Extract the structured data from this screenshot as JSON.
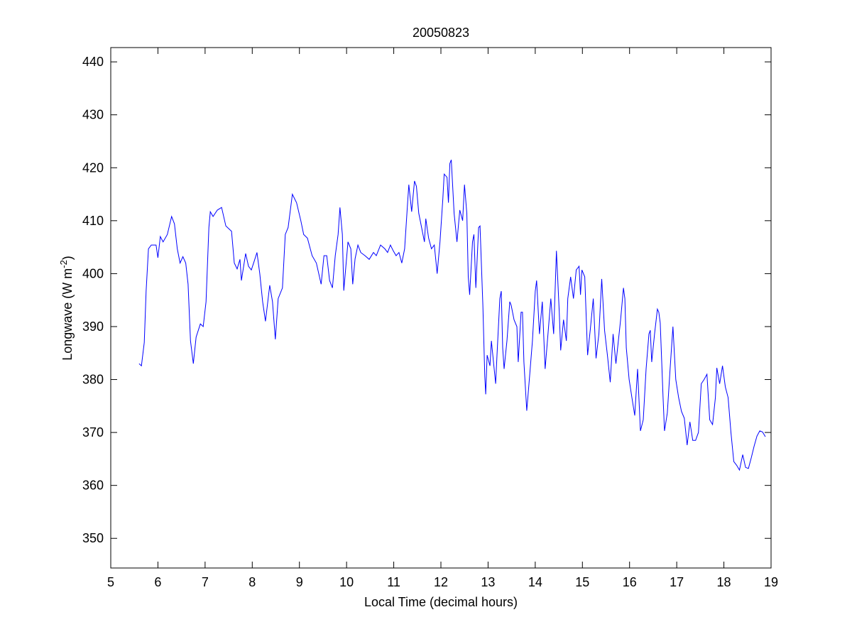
{
  "chart_data": {
    "type": "line",
    "title": "20050823",
    "xlabel": "Local Time (decimal hours)",
    "ylabel": "Longwave (W m",
    "ylabel_superscript": "-2",
    "ylabel_suffix": ")",
    "xlim": [
      5,
      19
    ],
    "ylim": [
      344.4,
      442.7
    ],
    "xticks": [
      5,
      6,
      7,
      8,
      9,
      10,
      11,
      12,
      13,
      14,
      15,
      16,
      17,
      18,
      19
    ],
    "yticks": [
      350,
      360,
      370,
      380,
      390,
      400,
      410,
      420,
      430,
      440
    ],
    "grid": false,
    "line_color": "#0000ff",
    "series": [
      {
        "name": "Longwave",
        "x": [
          5.6,
          5.65,
          5.71,
          5.75,
          5.8,
          5.86,
          5.96,
          6.0,
          6.05,
          6.11,
          6.2,
          6.29,
          6.35,
          6.41,
          6.47,
          6.53,
          6.59,
          6.64,
          6.69,
          6.75,
          6.81,
          6.9,
          6.96,
          7.02,
          7.08,
          7.11,
          7.17,
          7.26,
          7.35,
          7.44,
          7.56,
          7.62,
          7.68,
          7.74,
          7.77,
          7.86,
          7.92,
          7.98,
          8.04,
          8.1,
          8.16,
          8.22,
          8.28,
          8.37,
          8.43,
          8.49,
          8.55,
          8.64,
          8.7,
          8.76,
          8.85,
          8.94,
          9.03,
          9.09,
          9.17,
          9.27,
          9.36,
          9.46,
          9.52,
          9.58,
          9.64,
          9.7,
          9.76,
          9.82,
          9.86,
          9.91,
          9.94,
          10.03,
          10.09,
          10.13,
          10.18,
          10.24,
          10.3,
          10.39,
          10.48,
          10.57,
          10.63,
          10.72,
          10.81,
          10.87,
          10.93,
          10.99,
          11.05,
          11.11,
          11.17,
          11.23,
          11.29,
          11.32,
          11.38,
          11.44,
          11.48,
          11.53,
          11.59,
          11.65,
          11.68,
          11.74,
          11.8,
          11.86,
          11.92,
          11.98,
          12.04,
          12.07,
          12.13,
          12.16,
          12.19,
          12.22,
          12.28,
          12.34,
          12.4,
          12.46,
          12.5,
          12.55,
          12.58,
          12.61,
          12.67,
          12.7,
          12.74,
          12.8,
          12.83,
          12.89,
          12.93,
          12.95,
          12.98,
          13.04,
          13.07,
          13.16,
          13.19,
          13.25,
          13.28,
          13.31,
          13.34,
          13.4,
          13.46,
          13.49,
          13.55,
          13.61,
          13.64,
          13.7,
          13.73,
          13.76,
          13.82,
          13.88,
          13.94,
          14.0,
          14.03,
          14.09,
          14.15,
          14.21,
          14.27,
          14.33,
          14.39,
          14.45,
          14.51,
          14.54,
          14.6,
          14.66,
          14.69,
          14.75,
          14.81,
          14.87,
          14.93,
          14.96,
          14.99,
          15.05,
          15.11,
          15.17,
          15.23,
          15.29,
          15.35,
          15.41,
          15.47,
          15.53,
          15.59,
          15.65,
          15.71,
          15.81,
          15.87,
          15.9,
          15.93,
          15.99,
          16.05,
          16.11,
          16.17,
          16.23,
          16.29,
          16.35,
          16.41,
          16.44,
          16.47,
          16.53,
          16.59,
          16.62,
          16.65,
          16.71,
          16.74,
          16.8,
          16.86,
          16.92,
          16.98,
          17.04,
          17.1,
          17.16,
          17.22,
          17.28,
          17.34,
          17.4,
          17.46,
          17.52,
          17.58,
          17.64,
          17.7,
          17.76,
          17.82,
          17.85,
          17.91,
          17.97,
          18.03,
          18.09,
          18.15,
          18.21,
          18.27,
          18.33,
          18.4,
          18.46,
          18.52,
          18.58,
          18.64,
          18.7,
          18.76,
          18.82,
          18.88
        ],
        "y": [
          383,
          382.6,
          387,
          396.7,
          404.7,
          405.4,
          405.4,
          403,
          407,
          406,
          407.4,
          410.8,
          409.4,
          404.7,
          402,
          403.2,
          402,
          398,
          387.3,
          383,
          388,
          390.5,
          390,
          394.7,
          408.7,
          411.7,
          410.8,
          412,
          412.5,
          409,
          408,
          402,
          400.9,
          402.7,
          398.7,
          403.8,
          401.4,
          400.7,
          402.3,
          404,
          400,
          394.7,
          391,
          397.8,
          394.7,
          387.6,
          395.3,
          397.3,
          407.4,
          408.7,
          415,
          413.4,
          410,
          407.4,
          406.7,
          403.4,
          402,
          398,
          403.4,
          403.4,
          398.7,
          397.3,
          403.4,
          407.4,
          412.5,
          407.4,
          396.8,
          406,
          404.7,
          398,
          402.8,
          405.4,
          404,
          403.4,
          402.7,
          404,
          403.4,
          405.4,
          404.7,
          404,
          405.4,
          404.3,
          403.4,
          404,
          402,
          404.7,
          412.8,
          416.8,
          411.7,
          417.5,
          416.5,
          411.4,
          408.7,
          406,
          410.4,
          406.7,
          404.7,
          405.4,
          400,
          406,
          414.1,
          418.8,
          418.2,
          413.4,
          420.8,
          421.5,
          411.4,
          406,
          412,
          410,
          416.8,
          411.4,
          399.4,
          396,
          406,
          407.4,
          397.3,
          408.7,
          409,
          394,
          380.6,
          377.2,
          384.6,
          382.6,
          387.3,
          379.2,
          384.6,
          395.3,
          396.7,
          386,
          382,
          387.3,
          394.7,
          394,
          391.3,
          390,
          383.3,
          392.7,
          392.7,
          383.3,
          374.1,
          380.6,
          387.3,
          396.7,
          398.7,
          388.6,
          394.7,
          382,
          388.6,
          395.3,
          388.6,
          404.3,
          392.7,
          385.5,
          391.3,
          387.3,
          395.3,
          399.4,
          395.3,
          400.7,
          401.4,
          396,
          400.7,
          399.4,
          384.6,
          389.7,
          395.3,
          384,
          388.6,
          399,
          389.3,
          384.6,
          379.5,
          388.6,
          383,
          391.3,
          397.3,
          395.3,
          386,
          380,
          376.6,
          373.2,
          382,
          370.3,
          372.4,
          382,
          388.6,
          389.3,
          383.3,
          388.6,
          393.3,
          392.7,
          390.7,
          376.6,
          370.3,
          373.7,
          382,
          390,
          380,
          376.6,
          374,
          372.7,
          367.6,
          372,
          368.5,
          368.5,
          370,
          379.2,
          380,
          381,
          372.4,
          371.5,
          376.6,
          382.2,
          379.2,
          382.6,
          378.6,
          376.6,
          370,
          364.5,
          363.8,
          362.9,
          365.8,
          363.4,
          363.2,
          365.2,
          367.4,
          369.3,
          370.3,
          370.1,
          369.2
        ]
      }
    ]
  }
}
